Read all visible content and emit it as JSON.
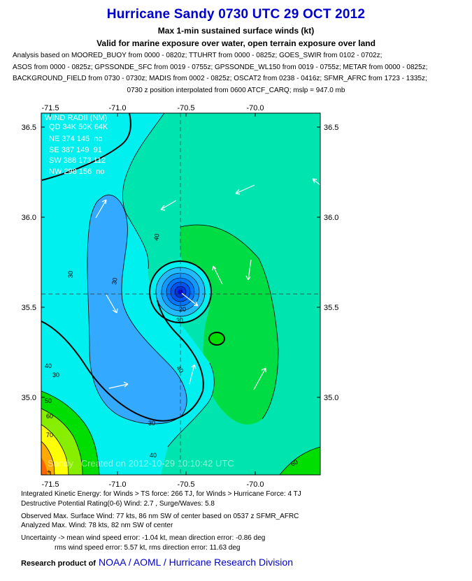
{
  "header": {
    "title": "Hurricane Sandy 0730 UTC 29 OCT 2012",
    "subtitle1": "Max 1-min sustained surface winds (kt)",
    "subtitle2": "Valid for marine exposure over water, open terrain exposure over land",
    "sources": [
      "Analysis based on MOORED_BUOY from 0000 - 0820z; TTUHRT from 0000 - 0825z; GOES_SWIR from 0102 - 0702z;",
      "ASOS from 0000 - 0825z; GPSSONDE_SFC from 0019 - 0755z; GPSSONDE_WL150 from 0019 - 0755z; METAR from 0000 - 0825z;",
      "BACKGROUND_FIELD from 0730 - 0730z; MADIS from 0002 - 0825z; OSCAT2 from 0238 - 0416z; SFMR_AFRC from 1723 - 1335z;"
    ],
    "position_note": "0730 z position interpolated from 0600 ATCF_CARQ; mslp = 947.0 mb"
  },
  "wind_radii": {
    "title": "WIND RADII (NM)",
    "rows": [
      "QD 34K 50K 64K",
      "NE 374 145  no",
      "SE 387 149  91",
      "SW 388 173 112",
      "NW 298 156  no"
    ]
  },
  "watermark": "Sandy   Created on 2012-10-29 10:10:42 UTC",
  "colors": {
    "band_20": "#0099ff",
    "band_30": "#00ffff",
    "band_40": "#00e5b0",
    "band_50": "#00dd00",
    "band_60": "#88ee00",
    "band_70": "#ffff00",
    "band_80": "#ffaa00",
    "band_90": "#ff6600",
    "eye": "#0000cc"
  },
  "chart_data": {
    "type": "contour",
    "xlabel": "",
    "ylabel": "",
    "x_ticks": [
      "-71.5",
      "-71.0",
      "-70.5",
      "-70.0"
    ],
    "y_ticks": [
      "36.5",
      "36.0",
      "35.5",
      "35.0"
    ],
    "xlim": [
      -71.52,
      -70.04
    ],
    "ylim": [
      34.61,
      36.61
    ],
    "storm_center": {
      "lon": -70.54,
      "lat": 35.57
    },
    "contour_levels_kt": [
      20,
      30,
      40,
      50,
      60,
      70,
      80
    ],
    "contour_labels": [
      "30",
      "30",
      "40",
      "30",
      "20",
      "30",
      "40",
      "40",
      "30",
      "40",
      "50",
      "60",
      "70",
      "60"
    ]
  },
  "stats": {
    "ike": "Integrated Kinetic Energy: for Winds > TS force: 266 TJ, for Winds > Hurricane Force: 4 TJ",
    "dp": "Destructive Potential Rating(0-6)  Wind: 2.7 , Surge/Waves: 5.8",
    "obs": "Observed Max. Surface Wind: 77 kts, 86 nm SW of center based on 0537 z SFMR_AFRC",
    "ana": "Analyzed Max. Wind: 78 kts, 82 nm  SW of center",
    "unc1": "Uncertainty -> mean wind speed error:  -1.04 kt, mean direction error:  -0.86 deg",
    "unc2": "rms wind speed error: 5.57 kt, rms direction error: 11.63 deg"
  },
  "credit": {
    "prefix": "Research product of",
    "org": "NOAA  /  AOML  /  Hurricane Research Division"
  }
}
